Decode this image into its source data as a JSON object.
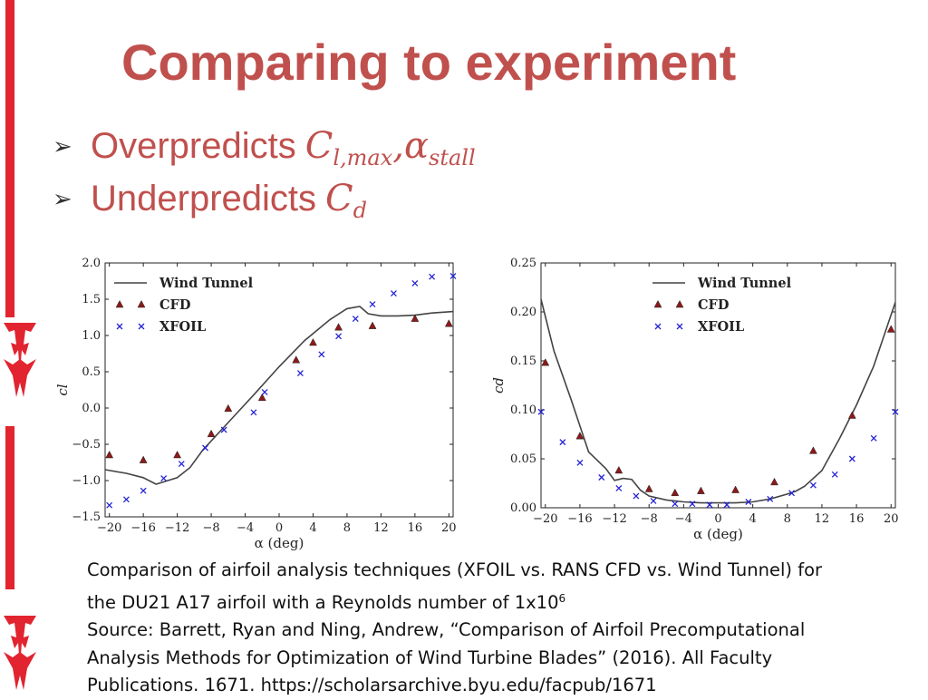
{
  "slide": {
    "title": "Comparing to experiment",
    "bullets": [
      {
        "text": "Overpredicts",
        "math_main": "C",
        "math_sub": "l,max",
        "math_sep": ",",
        "math_main2": "α",
        "math_sub2": "stall"
      },
      {
        "text": "Underpredicts",
        "math_main": "C",
        "math_sub": "d"
      }
    ],
    "caption": {
      "line1": "Comparison of airfoil analysis techniques (XFOIL vs. RANS CFD vs. Wind Tunnel) for",
      "line2_prefix": "the DU21 A17 airfoil with a Reynolds number of 1x10",
      "line2_sup": "6",
      "line3": "Source: Barrett, Ryan and Ning, Andrew, “Comparison of Airfoil Precomputational",
      "line4": "Analysis Methods for Optimization of Wind Turbine Blades” (2016). All Faculty",
      "line5": "Publications. 1671. https://scholarsarchive.byu.edu/facpub/1671"
    }
  },
  "colors": {
    "title": "#c0504d",
    "wind_tunnel": "#444444",
    "cfd": "#8b1a1a",
    "xfoil": "#2323d6",
    "brand_red": "#e1242f"
  },
  "chart_data": [
    {
      "type": "line",
      "id": "cl",
      "ylabel": "cl",
      "xlabel": "α (deg)",
      "xlim": [
        -20.5,
        20.5
      ],
      "ylim": [
        -1.5,
        2.0
      ],
      "xticks": [
        -20,
        -16,
        -12,
        -8,
        -4,
        0,
        4,
        8,
        12,
        16,
        20
      ],
      "xtick_labels": [
        "−20",
        "−16",
        "−12",
        "−8",
        "−4",
        "0",
        "4",
        "8",
        "12",
        "16",
        "20"
      ],
      "yticks": [
        -1.5,
        -1.0,
        -0.5,
        0.0,
        0.5,
        1.0,
        1.5,
        2.0
      ],
      "ytick_labels": [
        "−1.5",
        "−1.0",
        "−0.5",
        "0.0",
        "0.5",
        "1.0",
        "1.5",
        "2.0"
      ],
      "legend": [
        "Wind Tunnel",
        "CFD",
        "XFOIL"
      ],
      "series": [
        {
          "name": "Wind Tunnel",
          "style": "line",
          "x": [
            -20.5,
            -18,
            -16,
            -14.5,
            -12,
            -10.5,
            -9,
            -6,
            -3,
            0,
            3,
            6,
            8,
            9.5,
            10.5,
            12,
            14,
            16,
            18,
            20.5
          ],
          "y": [
            -0.85,
            -0.9,
            -0.96,
            -1.05,
            -0.96,
            -0.82,
            -0.58,
            -0.2,
            0.18,
            0.57,
            0.93,
            1.22,
            1.37,
            1.4,
            1.3,
            1.27,
            1.27,
            1.28,
            1.31,
            1.33
          ]
        },
        {
          "name": "CFD",
          "style": "triangle",
          "x": [
            -20,
            -16,
            -12,
            -8,
            -6,
            -2,
            2,
            4,
            7,
            11,
            16,
            20
          ],
          "y": [
            -0.65,
            -0.72,
            -0.65,
            -0.36,
            -0.01,
            0.14,
            0.66,
            0.9,
            1.11,
            1.13,
            1.23,
            1.16
          ]
        },
        {
          "name": "XFOIL",
          "style": "x",
          "x": [
            -20,
            -18,
            -16,
            -13.6,
            -11.5,
            -8.7,
            -6.5,
            -3,
            -1.7,
            2.5,
            5,
            7,
            9,
            11,
            13.5,
            16,
            18,
            20.5
          ],
          "y": [
            -1.34,
            -1.26,
            -1.14,
            -0.97,
            -0.77,
            -0.55,
            -0.3,
            -0.06,
            0.22,
            0.48,
            0.74,
            0.99,
            1.23,
            1.43,
            1.58,
            1.72,
            1.81,
            1.82
          ]
        }
      ]
    },
    {
      "type": "line",
      "id": "cd",
      "ylabel": "cd",
      "xlabel": "α (deg)",
      "xlim": [
        -20.5,
        20.5
      ],
      "ylim": [
        0.0,
        0.25
      ],
      "xticks": [
        -20,
        -16,
        -12,
        -8,
        -4,
        0,
        4,
        8,
        12,
        16,
        20
      ],
      "xtick_labels": [
        "−20",
        "−16",
        "−12",
        "−8",
        "−4",
        "0",
        "4",
        "8",
        "12",
        "16",
        "20"
      ],
      "yticks": [
        0.0,
        0.05,
        0.1,
        0.15,
        0.2,
        0.25
      ],
      "ytick_labels": [
        "0.00",
        "0.05",
        "0.10",
        "0.15",
        "0.20",
        "0.25"
      ],
      "legend": [
        "Wind Tunnel",
        "CFD",
        "XFOIL"
      ],
      "series": [
        {
          "name": "Wind Tunnel",
          "style": "line",
          "x": [
            -20.5,
            -19,
            -17,
            -15,
            -13,
            -12,
            -11,
            -10,
            -9,
            -8,
            -6,
            -4,
            -2,
            0,
            2,
            4,
            6,
            8,
            9,
            10,
            12,
            14,
            16,
            18,
            20.5
          ],
          "y": [
            0.213,
            0.16,
            0.11,
            0.057,
            0.04,
            0.028,
            0.03,
            0.029,
            0.018,
            0.012,
            0.008,
            0.006,
            0.005,
            0.005,
            0.005,
            0.006,
            0.009,
            0.014,
            0.017,
            0.022,
            0.038,
            0.07,
            0.105,
            0.145,
            0.21
          ]
        },
        {
          "name": "CFD",
          "style": "triangle",
          "x": [
            -20,
            -16,
            -11.5,
            -8,
            -5,
            -2,
            2,
            6.5,
            11,
            15.5,
            20
          ],
          "y": [
            0.148,
            0.073,
            0.038,
            0.019,
            0.015,
            0.017,
            0.018,
            0.026,
            0.058,
            0.094,
            0.182
          ]
        },
        {
          "name": "XFOIL",
          "style": "x",
          "x": [
            -20.5,
            -18,
            -16,
            -13.5,
            -11.5,
            -9.5,
            -7.5,
            -5,
            -3,
            -1,
            1,
            3.5,
            6,
            8.5,
            11,
            13.5,
            15.5,
            18,
            20.5
          ],
          "y": [
            0.098,
            0.067,
            0.046,
            0.031,
            0.02,
            0.012,
            0.007,
            0.004,
            0.004,
            0.003,
            0.003,
            0.006,
            0.009,
            0.015,
            0.023,
            0.034,
            0.05,
            0.071,
            0.098
          ]
        }
      ]
    }
  ]
}
